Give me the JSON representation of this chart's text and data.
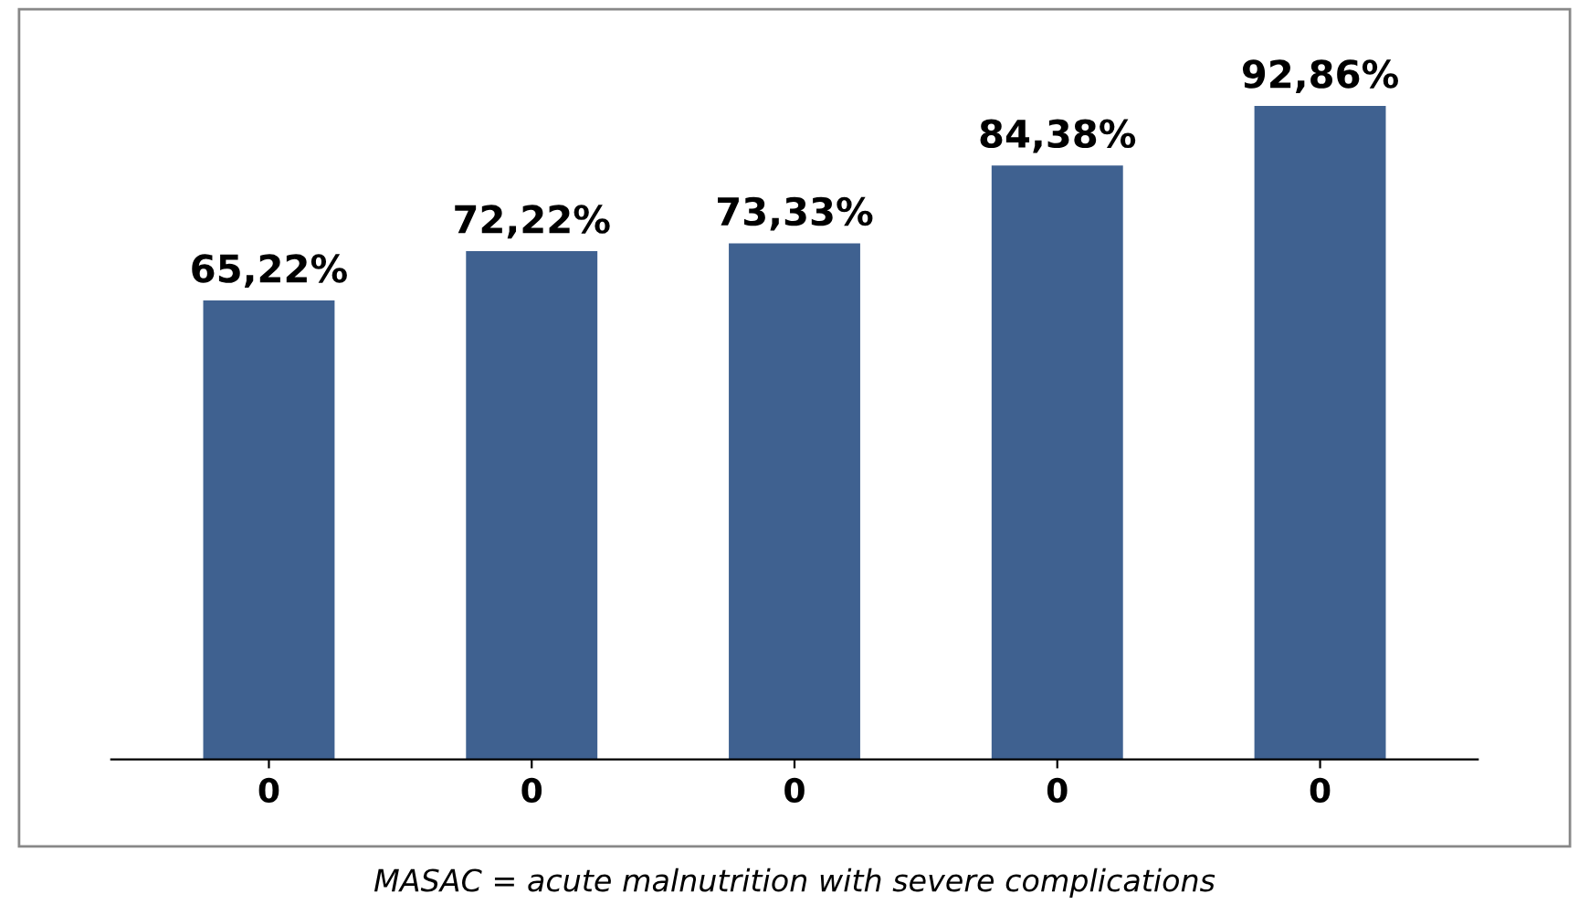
{
  "chart_data": {
    "type": "bar",
    "categories": [
      "0",
      "0",
      "0",
      "0",
      "0"
    ],
    "values": [
      65.22,
      72.22,
      73.33,
      84.38,
      92.86
    ],
    "value_labels": [
      "65,22%",
      "72,22%",
      "73,33%",
      "84,38%",
      "92,86%"
    ],
    "color": "#3f6190",
    "grid": false,
    "legend": false,
    "annotations": [
      "MASAC = acute malnutrition with severe complications"
    ]
  }
}
